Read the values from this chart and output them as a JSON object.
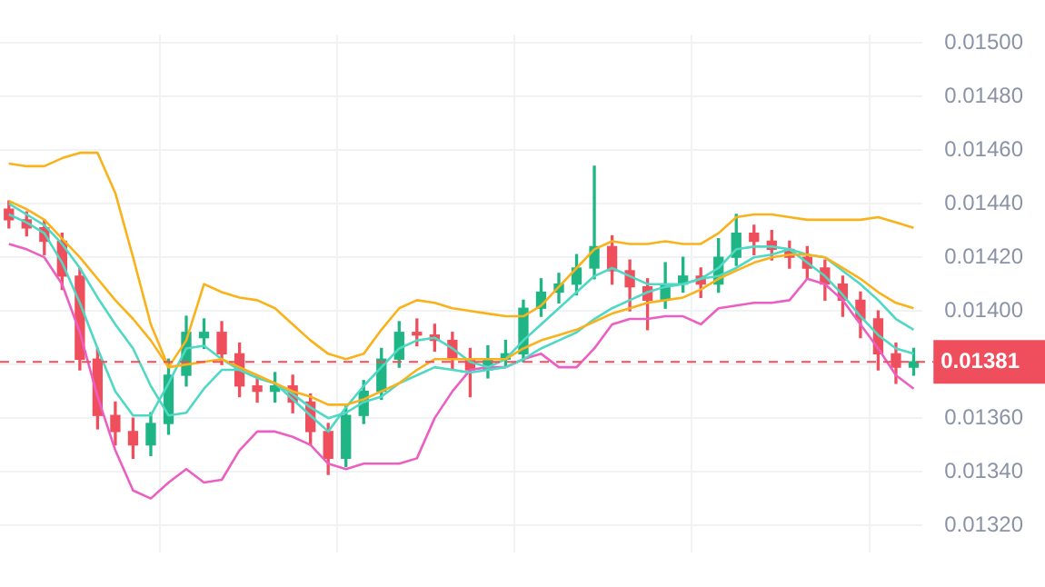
{
  "chart_data": {
    "type": "candlestick",
    "categories": [
      null,
      null,
      null,
      null,
      null,
      null,
      null,
      null,
      null,
      null,
      null,
      null,
      null,
      null,
      null,
      null,
      null,
      null,
      null,
      null,
      null,
      null,
      null,
      null,
      null,
      null,
      null,
      null,
      null,
      null,
      null,
      null,
      null,
      null,
      null,
      null,
      null,
      null,
      null,
      null,
      null,
      null,
      null,
      null,
      null,
      null,
      null,
      null,
      null,
      null,
      null,
      null
    ],
    "ohlc": [
      [
        0.01438,
        0.01441,
        0.01431,
        0.01434
      ],
      [
        0.01434,
        0.01437,
        0.01428,
        0.01431
      ],
      [
        0.01431,
        0.01434,
        0.01421,
        0.01426
      ],
      [
        0.01426,
        0.01429,
        0.01408,
        0.01413
      ],
      [
        0.01413,
        0.01416,
        0.01378,
        0.01382
      ],
      [
        0.01382,
        0.01386,
        0.01356,
        0.01361
      ],
      [
        0.01361,
        0.01366,
        0.0135,
        0.01355
      ],
      [
        0.01355,
        0.0136,
        0.01345,
        0.0135
      ],
      [
        0.0135,
        0.01362,
        0.01346,
        0.01358
      ],
      [
        0.01358,
        0.01382,
        0.01354,
        0.01376
      ],
      [
        0.01376,
        0.01398,
        0.01372,
        0.01392
      ],
      [
        0.0139,
        0.01397,
        0.01386,
        0.01392
      ],
      [
        0.01392,
        0.01396,
        0.0138,
        0.01384
      ],
      [
        0.01384,
        0.01388,
        0.01368,
        0.01372
      ],
      [
        0.01372,
        0.01376,
        0.01366,
        0.0137
      ],
      [
        0.0137,
        0.01377,
        0.01366,
        0.01372
      ],
      [
        0.01372,
        0.01376,
        0.01362,
        0.01366
      ],
      [
        0.01366,
        0.01369,
        0.0135,
        0.01355
      ],
      [
        0.01355,
        0.01358,
        0.01339,
        0.01345
      ],
      [
        0.01345,
        0.01365,
        0.01342,
        0.01361
      ],
      [
        0.01361,
        0.01374,
        0.01358,
        0.0137
      ],
      [
        0.0137,
        0.01386,
        0.01367,
        0.01382
      ],
      [
        0.01382,
        0.01396,
        0.01379,
        0.01392
      ],
      [
        0.01392,
        0.01397,
        0.01387,
        0.01391
      ],
      [
        0.01391,
        0.01395,
        0.01385,
        0.01389
      ],
      [
        0.01389,
        0.01392,
        0.01378,
        0.01382
      ],
      [
        0.01382,
        0.01386,
        0.01368,
        0.01378
      ],
      [
        0.01378,
        0.01387,
        0.01375,
        0.01382
      ],
      [
        0.01382,
        0.01389,
        0.01379,
        0.01384
      ],
      [
        0.01384,
        0.01404,
        0.01381,
        0.01401
      ],
      [
        0.01401,
        0.01412,
        0.01398,
        0.01407
      ],
      [
        0.01407,
        0.01414,
        0.01403,
        0.0141
      ],
      [
        0.0141,
        0.01421,
        0.01406,
        0.01416
      ],
      [
        0.01416,
        0.01454,
        0.01412,
        0.01424
      ],
      [
        0.01424,
        0.01428,
        0.0141,
        0.01415
      ],
      [
        0.01415,
        0.01419,
        0.014,
        0.01409
      ],
      [
        0.01409,
        0.01412,
        0.01393,
        0.01404
      ],
      [
        0.01404,
        0.01418,
        0.01401,
        0.0141
      ],
      [
        0.0141,
        0.0142,
        0.01407,
        0.01413
      ],
      [
        0.01413,
        0.01416,
        0.01405,
        0.0141
      ],
      [
        0.0141,
        0.01427,
        0.01407,
        0.0142
      ],
      [
        0.0142,
        0.01436,
        0.01417,
        0.01429
      ],
      [
        0.01429,
        0.01432,
        0.01421,
        0.01426
      ],
      [
        0.01426,
        0.0143,
        0.01419,
        0.01423
      ],
      [
        0.01423,
        0.01426,
        0.01416,
        0.0142
      ],
      [
        0.0142,
        0.01424,
        0.01412,
        0.01416
      ],
      [
        0.01416,
        0.01419,
        0.01404,
        0.0141
      ],
      [
        0.0141,
        0.01413,
        0.01398,
        0.01404
      ],
      [
        0.01404,
        0.01407,
        0.0139,
        0.01397
      ],
      [
        0.01397,
        0.014,
        0.01378,
        0.01384
      ],
      [
        0.01384,
        0.01388,
        0.01373,
        0.01379
      ],
      [
        0.01379,
        0.01386,
        0.01376,
        0.01381
      ]
    ],
    "colors": [
      "#ef4f5d",
      "#ef4f5d",
      "#ef4f5d",
      "#ef4f5d",
      "#ef4f5d",
      "#ef4f5d",
      "#ef4f5d",
      "#ef4f5d",
      "#1fb584",
      "#1fb584",
      "#1fb584",
      "#1fb584",
      "#ef4f5d",
      "#ef4f5d",
      "#ef4f5d",
      "#1fb584",
      "#ef4f5d",
      "#ef4f5d",
      "#ef4f5d",
      "#1fb584",
      "#1fb584",
      "#1fb584",
      "#1fb584",
      "#ef4f5d",
      "#ef4f5d",
      "#ef4f5d",
      "#ef4f5d",
      "#1fb584",
      "#1fb584",
      "#1fb584",
      "#1fb584",
      "#1fb584",
      "#1fb584",
      "#1fb584",
      "#ef4f5d",
      "#ef4f5d",
      "#ef4f5d",
      "#1fb584",
      "#1fb584",
      "#ef4f5d",
      "#1fb584",
      "#1fb584",
      "#ef4f5d",
      "#ef4f5d",
      "#ef4f5d",
      "#ef4f5d",
      "#ef4f5d",
      "#ef4f5d",
      "#ef4f5d",
      "#ef4f5d",
      "#ef4f5d",
      "#1fb584"
    ],
    "series": [
      {
        "type": "line",
        "color": "#f9b21a",
        "values": [
          0.01455,
          0.01454,
          0.01454,
          0.01457,
          0.01459,
          0.01459,
          0.01444,
          0.0142,
          0.01395,
          0.01379,
          0.01389,
          0.0141,
          0.01407,
          0.01405,
          0.01404,
          0.01401,
          0.01395,
          0.01389,
          0.01384,
          0.01382,
          0.01384,
          0.01393,
          0.01401,
          0.01404,
          0.01403,
          0.01401,
          0.014,
          0.01399,
          0.01398,
          0.01398,
          0.01402,
          0.01409,
          0.01416,
          0.01423,
          0.01426,
          0.01425,
          0.01425,
          0.01426,
          0.01425,
          0.01425,
          0.01429,
          0.01435,
          0.01436,
          0.01436,
          0.01435,
          0.01434,
          0.01434,
          0.01434,
          0.01434,
          0.01435,
          0.01433,
          0.01431
        ]
      },
      {
        "type": "line",
        "color": "#f9b21a",
        "values": [
          0.01441,
          0.01438,
          0.01434,
          0.01427,
          0.0142,
          0.01412,
          0.01404,
          0.01397,
          0.01389,
          0.01379,
          0.0138,
          0.01381,
          0.01382,
          0.01379,
          0.01376,
          0.01373,
          0.0137,
          0.01368,
          0.01365,
          0.01365,
          0.01367,
          0.0137,
          0.01373,
          0.01378,
          0.01382,
          0.01382,
          0.01382,
          0.01382,
          0.01382,
          0.01386,
          0.01389,
          0.01391,
          0.01393,
          0.01396,
          0.01399,
          0.01401,
          0.01403,
          0.01404,
          0.01405,
          0.01408,
          0.01412,
          0.01415,
          0.01418,
          0.0142,
          0.01421,
          0.01421,
          0.0142,
          0.01416,
          0.01412,
          0.01407,
          0.01403,
          0.01401
        ]
      },
      {
        "type": "line",
        "color": "#4fd8c4",
        "values": [
          0.0144,
          0.01436,
          0.01432,
          0.01425,
          0.01416,
          0.01405,
          0.01395,
          0.01386,
          0.01372,
          0.01361,
          0.01362,
          0.01371,
          0.01378,
          0.01378,
          0.01375,
          0.01373,
          0.01369,
          0.01364,
          0.0136,
          0.01362,
          0.01366,
          0.01368,
          0.01373,
          0.01376,
          0.01379,
          0.01378,
          0.01377,
          0.01378,
          0.01379,
          0.01382,
          0.01386,
          0.01389,
          0.01392,
          0.01397,
          0.01401,
          0.01404,
          0.01407,
          0.01409,
          0.0141,
          0.01412,
          0.01413,
          0.01416,
          0.0142,
          0.01421,
          0.01423,
          0.01421,
          0.0142,
          0.01415,
          0.0141,
          0.01404,
          0.01397,
          0.01393
        ]
      },
      {
        "type": "line",
        "color": "#4fd8c4",
        "values": [
          0.01436,
          0.01433,
          0.01429,
          0.01418,
          0.01403,
          0.01386,
          0.0137,
          0.01361,
          0.01361,
          0.01373,
          0.01386,
          0.01387,
          0.01382,
          0.01378,
          0.01375,
          0.01373,
          0.01367,
          0.01361,
          0.01355,
          0.01364,
          0.01372,
          0.01379,
          0.01386,
          0.01389,
          0.0139,
          0.01386,
          0.01381,
          0.01379,
          0.01382,
          0.01389,
          0.01395,
          0.01401,
          0.01407,
          0.01413,
          0.01416,
          0.01413,
          0.0141,
          0.0141,
          0.0141,
          0.01412,
          0.01416,
          0.01423,
          0.01424,
          0.01424,
          0.01423,
          0.01418,
          0.01413,
          0.01406,
          0.01398,
          0.01391,
          0.01386,
          0.01384
        ]
      },
      {
        "type": "line",
        "color": "#ec5fc2",
        "values": [
          0.01425,
          0.01423,
          0.0142,
          0.0141,
          0.01392,
          0.01368,
          0.01348,
          0.01333,
          0.0133,
          0.01336,
          0.01341,
          0.01336,
          0.01337,
          0.01348,
          0.01355,
          0.01355,
          0.01353,
          0.0135,
          0.01343,
          0.01341,
          0.01343,
          0.01343,
          0.01343,
          0.01345,
          0.0136,
          0.0137,
          0.01378,
          0.01379,
          0.01379,
          0.01382,
          0.01384,
          0.01379,
          0.01379,
          0.01386,
          0.01395,
          0.01397,
          0.01397,
          0.01398,
          0.01398,
          0.01395,
          0.01401,
          0.01402,
          0.01403,
          0.01403,
          0.01404,
          0.01412,
          0.0141,
          0.01404,
          0.01395,
          0.01386,
          0.01376,
          0.01371
        ]
      }
    ],
    "ylim": [
      0.0131,
      0.01503
    ],
    "yticks": [
      {
        "value": 0.0132,
        "label": "0.01320"
      },
      {
        "value": 0.0134,
        "label": "0.01340"
      },
      {
        "value": 0.0136,
        "label": "0.01360"
      },
      {
        "value": 0.0138,
        "label": null
      },
      {
        "value": 0.014,
        "label": "0.01400"
      },
      {
        "value": 0.0142,
        "label": "0.01420"
      },
      {
        "value": 0.0144,
        "label": "0.01440"
      },
      {
        "value": 0.0146,
        "label": "0.01460"
      },
      {
        "value": 0.0148,
        "label": "0.01480"
      },
      {
        "value": 0.015,
        "label": "0.01500"
      }
    ],
    "ref_lines": [
      {
        "axis": "y",
        "value": 0.01381,
        "label": "0.01381",
        "color": "#ef4f5d",
        "line_style": "dashed"
      }
    ],
    "grid": true,
    "legend": false,
    "tick_labels": "y"
  }
}
